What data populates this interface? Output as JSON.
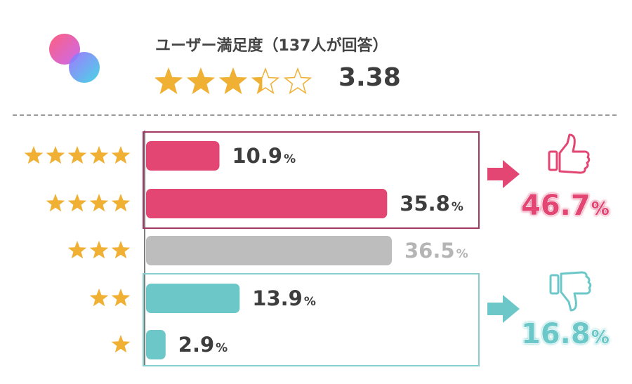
{
  "header": {
    "title": "ユーザー満足度（137人が回答）",
    "average_label": "3.38"
  },
  "colors": {
    "positive": "#e34672",
    "neutral": "#bdbdbd",
    "negative": "#6cc8c8",
    "star": "#efb034",
    "text": "#3d3d3d"
  },
  "icons": {
    "positive": "thumbs-up-icon",
    "negative": "thumbs-down-icon"
  },
  "chart_data": {
    "type": "bar",
    "orientation": "horizontal",
    "title": "ユーザー満足度（137人が回答）",
    "respondents": 137,
    "average": 3.38,
    "unit": "%",
    "categories": [
      "★★★★★",
      "★★★★",
      "★★★",
      "★★",
      "★"
    ],
    "star_counts": [
      5,
      4,
      3,
      2,
      1
    ],
    "values": [
      10.9,
      35.8,
      36.5,
      13.9,
      2.9
    ],
    "value_labels": [
      "10.9",
      "35.8",
      "36.5",
      "13.9",
      "2.9"
    ],
    "groups": [
      {
        "bars": [
          0,
          1
        ],
        "total_label": "46.7",
        "sentiment": "positive"
      },
      {
        "bars": [
          3,
          4
        ],
        "total_label": "16.8",
        "sentiment": "negative"
      }
    ]
  }
}
